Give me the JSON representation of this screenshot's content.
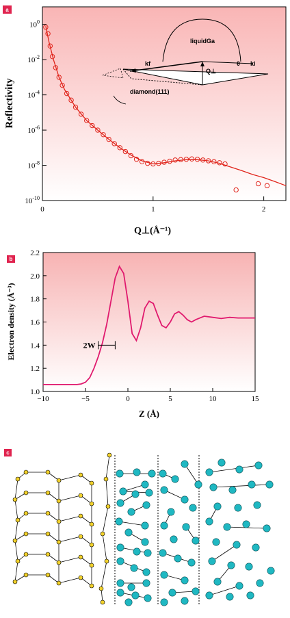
{
  "chart_data": [
    {
      "panel": "a",
      "type": "scatter",
      "xlabel": "Q⊥(Å⁻¹)",
      "ylabel": "Reflectivity",
      "xlim": [
        0,
        2.2
      ],
      "ylim_log10": [
        -10,
        1
      ],
      "y_scale": "log",
      "x_ticks": [
        0,
        1,
        2
      ],
      "x_tick_labels": [
        "0",
        "1",
        "2"
      ],
      "y_ticks_log10": [
        0,
        -2,
        -4,
        -6,
        -8,
        -10
      ],
      "y_tick_bases": [
        "10",
        "10",
        "10",
        "10",
        "10",
        "10"
      ],
      "y_tick_exps": [
        "0",
        "-2",
        "-4",
        "-6",
        "-8",
        "-10"
      ],
      "series": [
        {
          "role": "data points",
          "x": [
            0.03,
            0.05,
            0.07,
            0.09,
            0.12,
            0.15,
            0.18,
            0.22,
            0.26,
            0.3,
            0.35,
            0.4,
            0.45,
            0.5,
            0.55,
            0.6,
            0.65,
            0.7,
            0.75,
            0.8,
            0.85,
            0.9,
            0.95,
            1.0,
            1.05,
            1.1,
            1.15,
            1.2,
            1.25,
            1.3,
            1.35,
            1.4,
            1.45,
            1.5,
            1.55,
            1.6,
            1.65,
            1.75,
            1.95,
            2.03
          ],
          "y": [
            0.7,
            0.3,
            0.06,
            0.015,
            0.0035,
            0.001,
            0.00035,
            0.00012,
            5e-05,
            2e-05,
            8e-06,
            3.5e-06,
            1.8e-06,
            1e-06,
            5.5e-07,
            3e-07,
            1.7e-07,
            1e-07,
            6e-08,
            3.5e-08,
            2.2e-08,
            1.6e-08,
            1.3e-08,
            1.2e-08,
            1.3e-08,
            1.5e-08,
            1.7e-08,
            2e-08,
            2.1e-08,
            2.2e-08,
            2.3e-08,
            2.2e-08,
            2e-08,
            1.8e-08,
            1.6e-08,
            1.4e-08,
            1.2e-08,
            4e-10,
            9e-10,
            7e-10
          ]
        },
        {
          "role": "fit",
          "x": [
            0.03,
            0.06,
            0.1,
            0.15,
            0.2,
            0.3,
            0.4,
            0.5,
            0.6,
            0.7,
            0.8,
            0.9,
            1.0,
            1.1,
            1.2,
            1.3,
            1.4,
            1.5,
            1.6,
            1.7,
            1.8,
            1.9,
            2.0,
            2.1,
            2.2
          ],
          "y": [
            0.8,
            0.1,
            0.01,
            0.001,
            0.0002,
            2e-05,
            3.5e-06,
            1e-06,
            3e-07,
            1e-07,
            3.8e-08,
            1.8e-08,
            1.2e-08,
            1.4e-08,
            1.8e-08,
            2.1e-08,
            2.1e-08,
            1.8e-08,
            1.3e-08,
            8e-09,
            5e-09,
            3e-09,
            2e-09,
            1.2e-09,
            7e-10
          ]
        }
      ],
      "inset_labels": {
        "liquid": "liquidGa",
        "substrate": "diamond(111)",
        "kf": "kf",
        "ki": "ki",
        "q": "Q⊥",
        "theta": "θ"
      }
    },
    {
      "panel": "b",
      "type": "line",
      "xlabel": "Z (Å)",
      "ylabel": "Electron density (Å⁻³)",
      "xlim": [
        -10,
        15
      ],
      "ylim": [
        1.0,
        2.2
      ],
      "x_ticks": [
        -10,
        -5,
        0,
        5,
        10,
        15
      ],
      "y_ticks": [
        1.0,
        1.2,
        1.4,
        1.6,
        1.8,
        2.0,
        2.2
      ],
      "x_tick_labels": [
        "−10",
        "−5",
        "0",
        "5",
        "10",
        "15"
      ],
      "y_tick_labels": [
        "1.0",
        "1.2",
        "1.4",
        "1.6",
        "1.8",
        "2.0",
        "2.2"
      ],
      "annotation": "2W",
      "annotation_span": [
        -3.5,
        -1.5
      ],
      "annotation_y": 1.4,
      "x": [
        -10,
        -8,
        -6,
        -5.5,
        -5,
        -4.5,
        -4,
        -3.5,
        -3,
        -2.5,
        -2,
        -1.5,
        -1,
        -0.5,
        0,
        0.5,
        1,
        1.5,
        2,
        2.5,
        3,
        3.5,
        4,
        4.5,
        5,
        5.5,
        6,
        6.5,
        7,
        7.5,
        8,
        9,
        10,
        11,
        12,
        13,
        14,
        15
      ],
      "y": [
        1.06,
        1.06,
        1.06,
        1.065,
        1.08,
        1.12,
        1.2,
        1.3,
        1.42,
        1.58,
        1.78,
        1.98,
        2.08,
        2.02,
        1.78,
        1.5,
        1.44,
        1.55,
        1.72,
        1.78,
        1.76,
        1.66,
        1.57,
        1.55,
        1.6,
        1.67,
        1.69,
        1.66,
        1.62,
        1.6,
        1.62,
        1.65,
        1.64,
        1.63,
        1.64,
        1.635,
        1.635,
        1.635
      ]
    }
  ],
  "panel_c": {
    "title_tag": "c",
    "description_role": "structural schematic of diamond surface (yellow) and layered liquid Ga (cyan)"
  },
  "tags": {
    "a": "a",
    "b": "b",
    "c": "c"
  },
  "colors": {
    "data": "#e0241b",
    "line_b": "#e01a6e",
    "bg_top": "#f9b5b5",
    "bg_bottom": "#ffffff",
    "tag_bg": "#e0244f",
    "diamond_atom": "#f2d12a",
    "ga_atom": "#1fb8c2"
  }
}
